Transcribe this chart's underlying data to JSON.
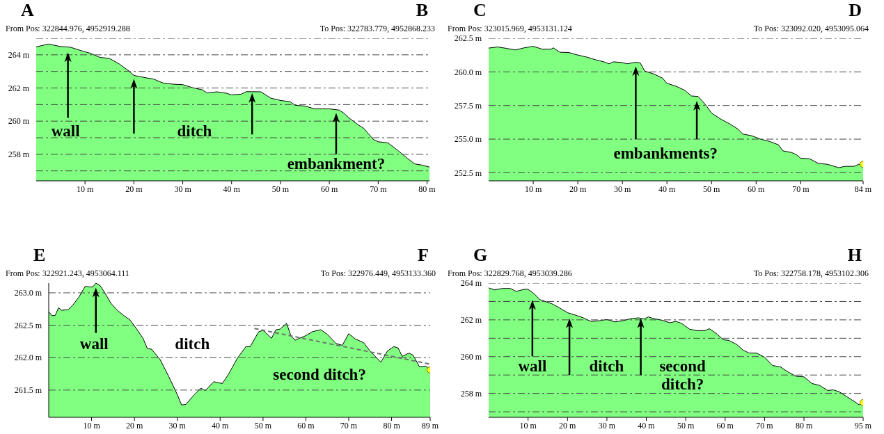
{
  "chart_data": [
    {
      "type": "area",
      "grid": "y",
      "xlim": [
        0,
        80.5
      ],
      "ylim": [
        256.4,
        265
      ],
      "xticks": [
        {
          "value": 10,
          "label": "10 m"
        },
        {
          "value": 20,
          "label": "20 m"
        },
        {
          "value": 30,
          "label": "30 m"
        },
        {
          "value": 40,
          "label": "40 m"
        },
        {
          "value": 50,
          "label": "50 m"
        },
        {
          "value": 60,
          "label": "60 m"
        },
        {
          "value": 70,
          "label": "70 m"
        },
        {
          "value": 80,
          "label": "80 m"
        }
      ],
      "yticks": [
        {
          "value": 257,
          "label": null
        },
        {
          "value": 258,
          "label": "258 m"
        },
        {
          "value": 259,
          "label": null
        },
        {
          "value": 260,
          "label": "260 m"
        },
        {
          "value": 261,
          "label": null
        },
        {
          "value": 262,
          "label": "262 m"
        },
        {
          "value": 263,
          "label": null
        },
        {
          "value": 264,
          "label": "264 m"
        },
        {
          "value": 265,
          "label": null
        }
      ],
      "series": [
        {
          "color": "#80ff80",
          "x": [
            0,
            2.5,
            5,
            7,
            9,
            11,
            13,
            15,
            17,
            19,
            20,
            22,
            24,
            26,
            28,
            30,
            32,
            34,
            35,
            37,
            39,
            40,
            42,
            43,
            46,
            48,
            50,
            52,
            53,
            55,
            57,
            60,
            62,
            63,
            64,
            66,
            67,
            68,
            69,
            70,
            72,
            74,
            76,
            77.5,
            79,
            80.5
          ],
          "values": [
            264.48,
            264.65,
            264.5,
            264.46,
            264.27,
            264.1,
            263.85,
            263.78,
            263.45,
            263.02,
            262.76,
            262.64,
            262.54,
            262.3,
            262.23,
            262.2,
            262.02,
            261.89,
            261.7,
            261.77,
            261.68,
            261.58,
            261.63,
            261.78,
            261.77,
            261.39,
            261.25,
            261.17,
            260.96,
            260.91,
            260.74,
            260.74,
            260.67,
            260.48,
            260.2,
            259.76,
            259.58,
            259.24,
            258.9,
            258.76,
            258.69,
            258.24,
            257.75,
            257.42,
            257.35,
            257.23
          ]
        }
      ],
      "annotations": [
        "A",
        "B",
        "From Pos: 322844.976, 4952919.288",
        "To Pos: 322783.779, 4952868.233",
        "wall",
        "ditch",
        "embankment?"
      ]
    },
    {
      "type": "area",
      "grid": "y",
      "xlim": [
        0,
        84
      ],
      "ylim": [
        251.9,
        262.5
      ],
      "xticks": [
        {
          "value": 10,
          "label": "10 m"
        },
        {
          "value": 20,
          "label": "20 m"
        },
        {
          "value": 30,
          "label": "30 m"
        },
        {
          "value": 40,
          "label": "40 m"
        },
        {
          "value": 50,
          "label": "50 m"
        },
        {
          "value": 60,
          "label": "60 m"
        },
        {
          "value": 70,
          "label": "70 m"
        },
        {
          "value": 84,
          "label": "84 m"
        }
      ],
      "yticks": [
        {
          "value": 252.5,
          "label": "252.5 m"
        },
        {
          "value": 255,
          "label": "255.0 m"
        },
        {
          "value": 257.5,
          "label": "257.5 m"
        },
        {
          "value": 260,
          "label": "260.0 m"
        },
        {
          "value": 262.5,
          "label": "262.5 m"
        }
      ],
      "series": [
        {
          "color": "#80ff80",
          "x": [
            0,
            2,
            4,
            6,
            8,
            10,
            12,
            14,
            14.5,
            16,
            18,
            20,
            22,
            24,
            26,
            27,
            28,
            30,
            31,
            33,
            34,
            35,
            37,
            39,
            40,
            42,
            44,
            45.5,
            47,
            48,
            49,
            50,
            52,
            54,
            56,
            57,
            59,
            61,
            63,
            65,
            66,
            68,
            69,
            70,
            72,
            74,
            76,
            78.5,
            80,
            82,
            83,
            84
          ],
          "values": [
            261.77,
            261.85,
            261.75,
            261.63,
            261.79,
            261.9,
            261.69,
            261.69,
            261.79,
            261.46,
            261.44,
            261.25,
            261.1,
            260.9,
            260.73,
            260.6,
            260.75,
            260.69,
            260.6,
            260.71,
            260.67,
            260.06,
            259.85,
            259.54,
            259.15,
            258.94,
            258.63,
            258.21,
            258.17,
            257.81,
            257.4,
            256.94,
            256.5,
            256.15,
            255.73,
            255.38,
            255.25,
            255.0,
            254.83,
            254.58,
            254.13,
            254.0,
            253.85,
            253.58,
            253.54,
            253.19,
            253.13,
            252.88,
            252.98,
            252.98,
            253.13,
            253.13
          ]
        },
        {
          "type": "scatter",
          "color": "#ffff00",
          "x": [
            84
          ],
          "values": [
            253.13
          ]
        }
      ],
      "annotations": [
        "C",
        "D",
        "From Pos: 323015.969, 4953131.124",
        "To Pos: 323092.020, 4953095.064",
        "embankments?"
      ]
    },
    {
      "type": "area",
      "grid": "y",
      "xlim": [
        0,
        89
      ],
      "ylim": [
        261.08,
        263.15
      ],
      "xticks": [
        {
          "value": 10,
          "label": "10 m"
        },
        {
          "value": 20,
          "label": "20 m"
        },
        {
          "value": 30,
          "label": "30 m"
        },
        {
          "value": 40,
          "label": "40 m"
        },
        {
          "value": 50,
          "label": "50 m"
        },
        {
          "value": 60,
          "label": "60 m"
        },
        {
          "value": 70,
          "label": "70 m"
        },
        {
          "value": 80,
          "label": "80 m"
        },
        {
          "value": 89,
          "label": "89 m"
        }
      ],
      "yticks": [
        {
          "value": 261.5,
          "label": "261.5 m"
        },
        {
          "value": 262,
          "label": "262.0 m"
        },
        {
          "value": 262.5,
          "label": "262.5 m"
        },
        {
          "value": 263,
          "label": "263.0 m"
        }
      ],
      "series": [
        {
          "color": "#80ff80",
          "x": [
            0,
            0.7,
            1.5,
            2.3,
            3,
            4.5,
            5.5,
            7,
            8.5,
            9.5,
            10.3,
            11,
            12,
            13,
            14.5,
            16,
            17.5,
            19,
            20,
            22,
            23,
            24,
            26,
            28,
            30,
            31,
            32,
            34,
            35.5,
            36.5,
            38.5,
            40.5,
            42,
            44,
            46,
            47,
            49,
            50,
            52,
            53,
            54,
            55.5,
            56.5,
            57.5,
            60,
            61.5,
            63.5,
            65,
            67,
            68.5,
            70,
            71.5,
            73.5,
            75,
            77.5,
            79,
            80.5,
            81.5,
            82.5,
            84,
            85,
            86.5,
            88,
            89
          ],
          "values": [
            262.71,
            262.65,
            262.65,
            262.77,
            262.73,
            262.74,
            262.8,
            262.93,
            263.1,
            263.09,
            263.09,
            263.15,
            263.11,
            263.01,
            262.84,
            262.73,
            262.65,
            262.58,
            262.49,
            262.3,
            262.14,
            262.13,
            261.97,
            261.71,
            261.43,
            261.27,
            261.28,
            261.43,
            261.53,
            261.49,
            261.63,
            261.6,
            261.75,
            261.99,
            262.17,
            262.17,
            262.4,
            262.42,
            262.3,
            262.43,
            262.44,
            262.53,
            262.34,
            262.27,
            262.34,
            262.4,
            262.43,
            262.36,
            262.22,
            262.19,
            262.37,
            262.29,
            262.23,
            262.1,
            261.93,
            262.1,
            262.17,
            262.15,
            262.02,
            262.07,
            262.04,
            261.86,
            261.87,
            261.81
          ]
        },
        {
          "type": "line",
          "color": "#707070",
          "line_style": "dashed",
          "x": [
            48,
            89
          ],
          "values": [
            262.45,
            261.9
          ]
        },
        {
          "type": "scatter",
          "color": "#ffff00",
          "x": [
            89
          ],
          "values": [
            261.81
          ]
        }
      ],
      "annotations": [
        "E",
        "F",
        "From Pos: 322921.243, 4953064.111",
        "To Pos: 322976.449, 4953133.360",
        "wall",
        "ditch",
        "second ditch?"
      ]
    },
    {
      "type": "area",
      "grid": "y",
      "xlim": [
        0,
        95
      ],
      "ylim": [
        256.7,
        264
      ],
      "xticks": [
        {
          "value": 10,
          "label": "10 m"
        },
        {
          "value": 20,
          "label": "20 m"
        },
        {
          "value": 30,
          "label": "30 m"
        },
        {
          "value": 40,
          "label": "40 m"
        },
        {
          "value": 50,
          "label": "50 m"
        },
        {
          "value": 60,
          "label": "60 m"
        },
        {
          "value": 70,
          "label": "70 m"
        },
        {
          "value": 80,
          "label": "80 m"
        },
        {
          "value": 95,
          "label": "95 m"
        }
      ],
      "yticks": [
        {
          "value": 257,
          "label": null
        },
        {
          "value": 258,
          "label": "258 m"
        },
        {
          "value": 259,
          "label": null
        },
        {
          "value": 260,
          "label": "260 m"
        },
        {
          "value": 261,
          "label": null
        },
        {
          "value": 262,
          "label": "262 m"
        },
        {
          "value": 263,
          "label": null
        },
        {
          "value": 264,
          "label": "264 m"
        }
      ],
      "series": [
        {
          "color": "#80ff80",
          "x": [
            0,
            1.5,
            3.5,
            5.5,
            7,
            9,
            10,
            11.5,
            13,
            14.5,
            16,
            18,
            20,
            22,
            24,
            26,
            28,
            30,
            32,
            34,
            36,
            38,
            39.5,
            40.5,
            42,
            44,
            46,
            47.5,
            49,
            51,
            53,
            55,
            56,
            58,
            59.5,
            61,
            63,
            64.5,
            66,
            68,
            70,
            72,
            74,
            76,
            78,
            80,
            82,
            84,
            86,
            87.5,
            89,
            91,
            93,
            94,
            95
          ],
          "values": [
            263.74,
            263.63,
            263.71,
            263.71,
            263.55,
            263.66,
            263.66,
            263.43,
            263.1,
            262.99,
            262.88,
            262.65,
            262.39,
            262.26,
            262.11,
            261.91,
            261.95,
            262.02,
            261.89,
            261.95,
            262.06,
            262.11,
            262.05,
            262.16,
            262.06,
            261.98,
            261.84,
            261.92,
            261.8,
            261.49,
            261.41,
            261.42,
            261.52,
            261.22,
            260.92,
            260.88,
            260.65,
            260.36,
            260.2,
            260.19,
            259.97,
            259.52,
            259.44,
            259.16,
            258.93,
            258.9,
            258.54,
            258.43,
            258.16,
            258.19,
            258.08,
            257.8,
            257.53,
            257.38,
            257.5
          ]
        },
        {
          "type": "scatter",
          "color": "#ffff00",
          "x": [
            95
          ],
          "values": [
            257.5
          ]
        }
      ],
      "annotations": [
        "G",
        "H",
        "From Pos: 322829.768, 4953039.286",
        "To Pos: 322758.178, 4953102.306",
        "wall",
        "ditch",
        "second\nditch?"
      ]
    }
  ]
}
